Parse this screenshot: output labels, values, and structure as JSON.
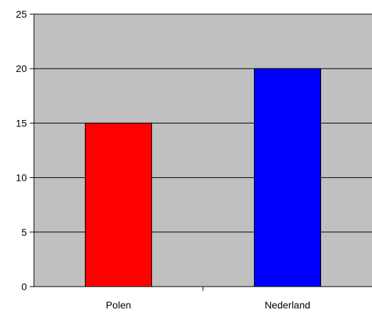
{
  "chart_data": {
    "type": "bar",
    "categories": [
      "Polen",
      "Nederland"
    ],
    "values": [
      15,
      20
    ],
    "bar_colors": [
      "#ff0000",
      "#0000ff"
    ],
    "ylim": [
      0,
      25
    ],
    "yticks": [
      0,
      5,
      10,
      15,
      20,
      25
    ],
    "ytick_labels": [
      "0",
      "5",
      "10",
      "15",
      "20",
      "25"
    ],
    "grid": true,
    "plot_background": "#c0c0c0",
    "title": "",
    "xlabel": "",
    "ylabel": ""
  }
}
